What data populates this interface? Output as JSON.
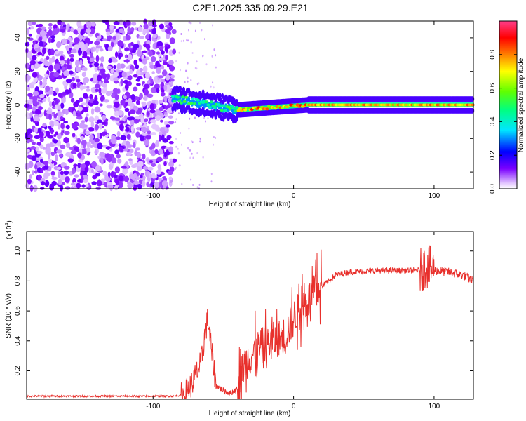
{
  "title": "C2E1.2025.335.09.29.E21",
  "chart_data": [
    {
      "type": "heatmap",
      "name": "spectrogram",
      "xlabel": "Height of straight line (km)",
      "ylabel": "Frequency (Hz)",
      "xlim": [
        -190,
        128
      ],
      "ylim": [
        -50,
        50
      ],
      "xticks": [
        -100,
        0,
        100
      ],
      "xtick_labels": [
        "-100",
        "0",
        "100"
      ],
      "yticks": [
        -40,
        -20,
        0,
        20,
        40
      ],
      "ytick_labels": [
        "-40",
        "-20",
        "0",
        "20",
        "40"
      ],
      "colorbar": {
        "label": "Normalized spectral amplitude",
        "range": [
          0,
          1
        ],
        "ticks": [
          0.0,
          0.2,
          0.4,
          0.6,
          0.8
        ],
        "tick_labels": [
          "0.0",
          "0.2",
          "0.4",
          "0.6",
          "0.8"
        ]
      },
      "regions": [
        {
          "x_range": [
            -190,
            -85
          ],
          "description": "broadband noise, amplitude ~0.1-0.2"
        },
        {
          "x_range": [
            -85,
            -40
          ],
          "freq_center": [
            3,
            -3
          ],
          "amplitude": 0.4
        },
        {
          "x_range": [
            -40,
            10
          ],
          "freq_center": [
            -3,
            0
          ],
          "amplitude": 0.85
        },
        {
          "x_range": [
            10,
            128
          ],
          "freq_center": [
            0,
            0
          ],
          "amplitude": 0.75
        }
      ]
    },
    {
      "type": "line",
      "name": "snr",
      "xlabel": "Height of straight line (km)",
      "ylabel": "SNR (10 * v/v)",
      "exponent_label": "(x10",
      "exponent_power": "4",
      "exponent_close": ")",
      "xlim": [
        -190,
        128
      ],
      "ylim": [
        0.01,
        1.13
      ],
      "xticks": [
        -100,
        0,
        100
      ],
      "xtick_labels": [
        "-100",
        "0",
        "100"
      ],
      "yticks": [
        0.2,
        0.4,
        0.6,
        0.8,
        1.0
      ],
      "ytick_labels": [
        "0.2",
        "0.4",
        "0.6",
        "0.8",
        "1.0"
      ],
      "color": "#e8302c",
      "series_x_range": [
        -190,
        128
      ],
      "envelope": [
        [
          -190,
          0.03
        ],
        [
          -85,
          0.03
        ],
        [
          -78,
          0.04
        ],
        [
          -72,
          0.12
        ],
        [
          -66,
          0.25
        ],
        [
          -63,
          0.45
        ],
        [
          -61,
          0.55
        ],
        [
          -58,
          0.3
        ],
        [
          -55,
          0.1
        ],
        [
          -50,
          0.07
        ],
        [
          -45,
          0.05
        ],
        [
          -40,
          0.08
        ],
        [
          -35,
          0.25
        ],
        [
          -30,
          0.3
        ],
        [
          -25,
          0.35
        ],
        [
          -20,
          0.38
        ],
        [
          -15,
          0.4
        ],
        [
          -10,
          0.42
        ],
        [
          -5,
          0.45
        ],
        [
          0,
          0.55
        ],
        [
          5,
          0.62
        ],
        [
          10,
          0.67
        ],
        [
          15,
          0.72
        ],
        [
          20,
          0.76
        ],
        [
          25,
          0.8
        ],
        [
          30,
          0.84
        ],
        [
          40,
          0.86
        ],
        [
          60,
          0.87
        ],
        [
          80,
          0.87
        ],
        [
          90,
          0.87
        ],
        [
          95,
          0.9
        ],
        [
          100,
          0.87
        ],
        [
          110,
          0.86
        ],
        [
          120,
          0.84
        ],
        [
          128,
          0.8
        ]
      ]
    }
  ]
}
